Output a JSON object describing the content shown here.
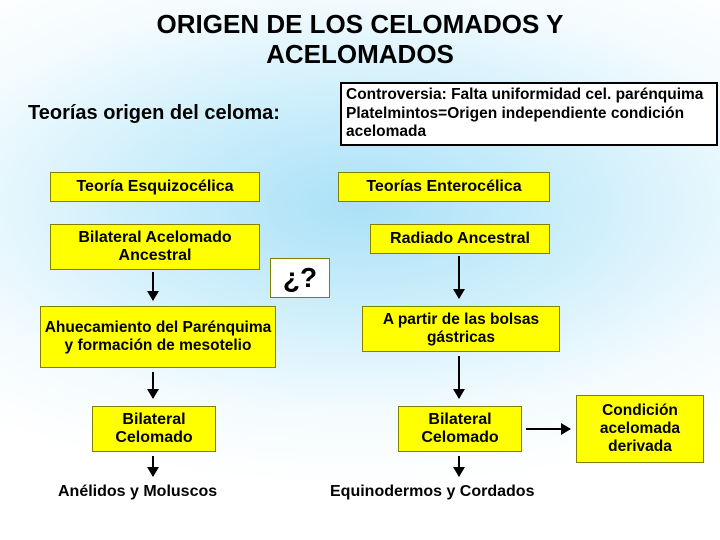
{
  "title_line1": "ORIGEN DE LOS CELOMADOS Y",
  "title_line2": "ACELOMADOS",
  "subtitle": "Teorías origen del celoma:",
  "controversia": "Controversia: Falta uniformidad cel. parénquima Platelmintos=Origen independiente condición acelomada",
  "left": {
    "theory": "Teoría Esquizocélica",
    "ancestor": "Bilateral Acelomado Ancestral",
    "process": "Ahuecamiento del Parénquima y formación de mesotelio",
    "result": "Bilateral Celomado",
    "examples": "Anélidos y Moluscos"
  },
  "right": {
    "theory": "Teorías Enterocélica",
    "ancestor": "Radiado Ancestral",
    "process": "A partir de las bolsas gástricas",
    "result": "Bilateral Celomado",
    "examples": "Equinodermos y Cordados"
  },
  "question": "¿?",
  "derived": "Condición acelomada derivada",
  "colors": {
    "box_bg": "#ffff00",
    "box_border": "#808000",
    "wave": "#6fc8ee",
    "text": "#000000"
  },
  "type": "flowchart",
  "layout": "two-column comparative flow with central question node and side derived-condition box"
}
